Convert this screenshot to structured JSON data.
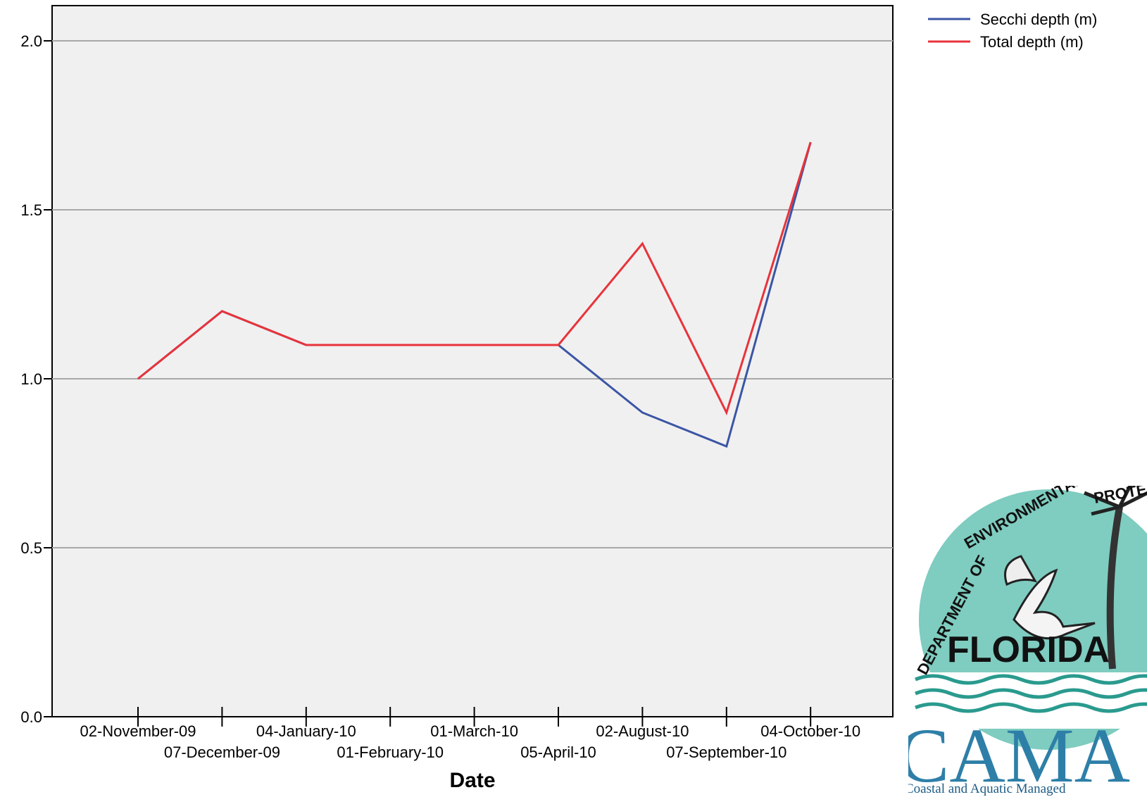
{
  "chart_data": {
    "type": "line",
    "title": "",
    "xlabel": "Date",
    "ylabel": "",
    "categories": [
      "02-November-09",
      "07-December-09",
      "04-January-10",
      "01-February-10",
      "01-March-10",
      "05-April-10",
      "02-August-10",
      "07-September-10",
      "04-October-10"
    ],
    "series": [
      {
        "name": "Secchi depth (m)",
        "color": "#3b55a5",
        "values": [
          1.0,
          1.2,
          1.1,
          1.1,
          1.1,
          1.1,
          0.9,
          0.8,
          1.7
        ]
      },
      {
        "name": "Total depth (m)",
        "color": "#e8333b",
        "values": [
          1.0,
          1.2,
          1.1,
          1.1,
          1.1,
          1.1,
          1.4,
          0.9,
          1.7
        ]
      }
    ],
    "ylim": [
      0.0,
      2.0
    ],
    "yticks": [
      "0.0",
      "0.5",
      "1.0",
      "1.5",
      "2.0"
    ],
    "grid": true,
    "legend_position": "top-right",
    "plot_background": "#f0f0f0",
    "gridline_color": "#a8a8a8"
  },
  "logo": {
    "arc_text": "DEPARTMENT OF ENVIRONMENTAL PROTECTION",
    "state": "FLORIDA",
    "brand": "CAMA",
    "tagline": "Coastal and Aquatic Managed"
  }
}
